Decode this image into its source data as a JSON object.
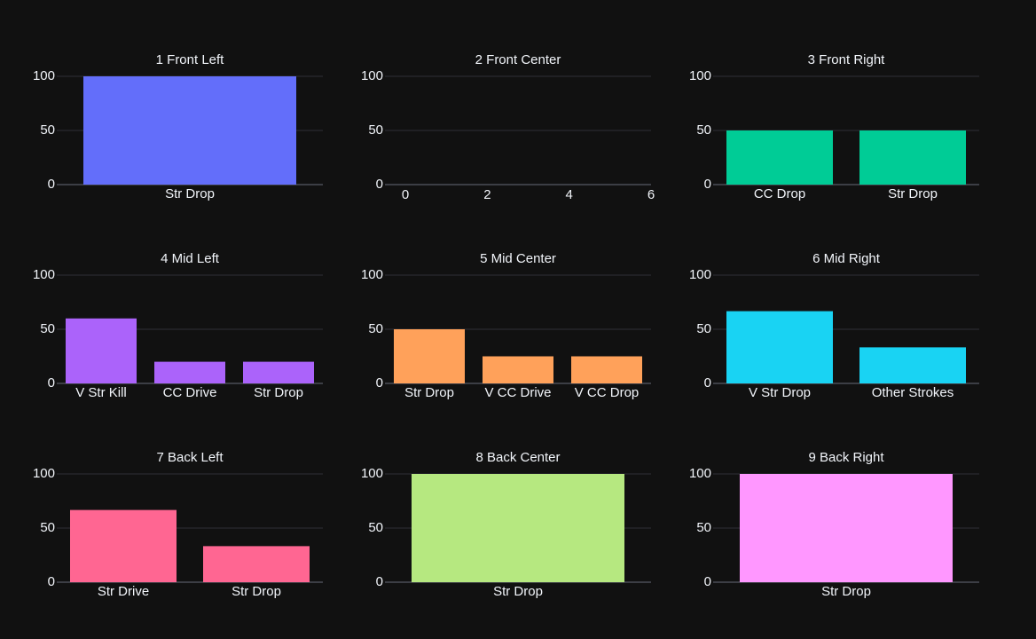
{
  "colors": {
    "background": "#111111",
    "grid": "#2e3038",
    "axis_line": "#4a4d57",
    "text": "#f2f5fa"
  },
  "chart_data": [
    {
      "type": "bar",
      "title": "1 Front Left",
      "ylim": [
        0,
        100
      ],
      "yticks": [
        0,
        50,
        100
      ],
      "grid": true,
      "color": "#636efa",
      "categories": [
        "Str Drop"
      ],
      "values": [
        100
      ]
    },
    {
      "type": "bar",
      "title": "2 Front Center",
      "ylim": [
        0,
        100
      ],
      "yticks": [
        0,
        50,
        100
      ],
      "grid": true,
      "color": "#ef553b",
      "categories": [],
      "values": [],
      "x_numeric_ticks": [
        0,
        2,
        4,
        6
      ]
    },
    {
      "type": "bar",
      "title": "3 Front Right",
      "ylim": [
        0,
        100
      ],
      "yticks": [
        0,
        50,
        100
      ],
      "grid": true,
      "color": "#00cc96",
      "categories": [
        "CC Drop",
        "Str Drop"
      ],
      "values": [
        50,
        50
      ]
    },
    {
      "type": "bar",
      "title": "4 Mid Left",
      "ylim": [
        0,
        100
      ],
      "yticks": [
        0,
        50,
        100
      ],
      "grid": true,
      "color": "#ab63fa",
      "categories": [
        "V Str Kill",
        "CC Drive",
        "Str Drop"
      ],
      "values": [
        60,
        20,
        20
      ]
    },
    {
      "type": "bar",
      "title": "5 Mid Center",
      "ylim": [
        0,
        100
      ],
      "yticks": [
        0,
        50,
        100
      ],
      "grid": true,
      "color": "#ffa15a",
      "categories": [
        "Str Drop",
        "V CC Drive",
        "V CC Drop"
      ],
      "values": [
        50,
        25,
        25
      ]
    },
    {
      "type": "bar",
      "title": "6 Mid Right",
      "ylim": [
        0,
        100
      ],
      "yticks": [
        0,
        50,
        100
      ],
      "grid": true,
      "color": "#19d3f3",
      "categories": [
        "V Str Drop",
        "Other Strokes"
      ],
      "values": [
        66.7,
        33.3
      ]
    },
    {
      "type": "bar",
      "title": "7 Back Left",
      "ylim": [
        0,
        100
      ],
      "yticks": [
        0,
        50,
        100
      ],
      "grid": true,
      "color": "#ff6692",
      "categories": [
        "Str Drive",
        "Str Drop"
      ],
      "values": [
        66.7,
        33.3
      ]
    },
    {
      "type": "bar",
      "title": "8 Back Center",
      "ylim": [
        0,
        100
      ],
      "yticks": [
        0,
        50,
        100
      ],
      "grid": true,
      "color": "#b6e880",
      "categories": [
        "Str Drop"
      ],
      "values": [
        100
      ]
    },
    {
      "type": "bar",
      "title": "9 Back Right",
      "ylim": [
        0,
        100
      ],
      "yticks": [
        0,
        50,
        100
      ],
      "grid": true,
      "color": "#ff97ff",
      "categories": [
        "Str Drop"
      ],
      "values": [
        100
      ]
    }
  ]
}
